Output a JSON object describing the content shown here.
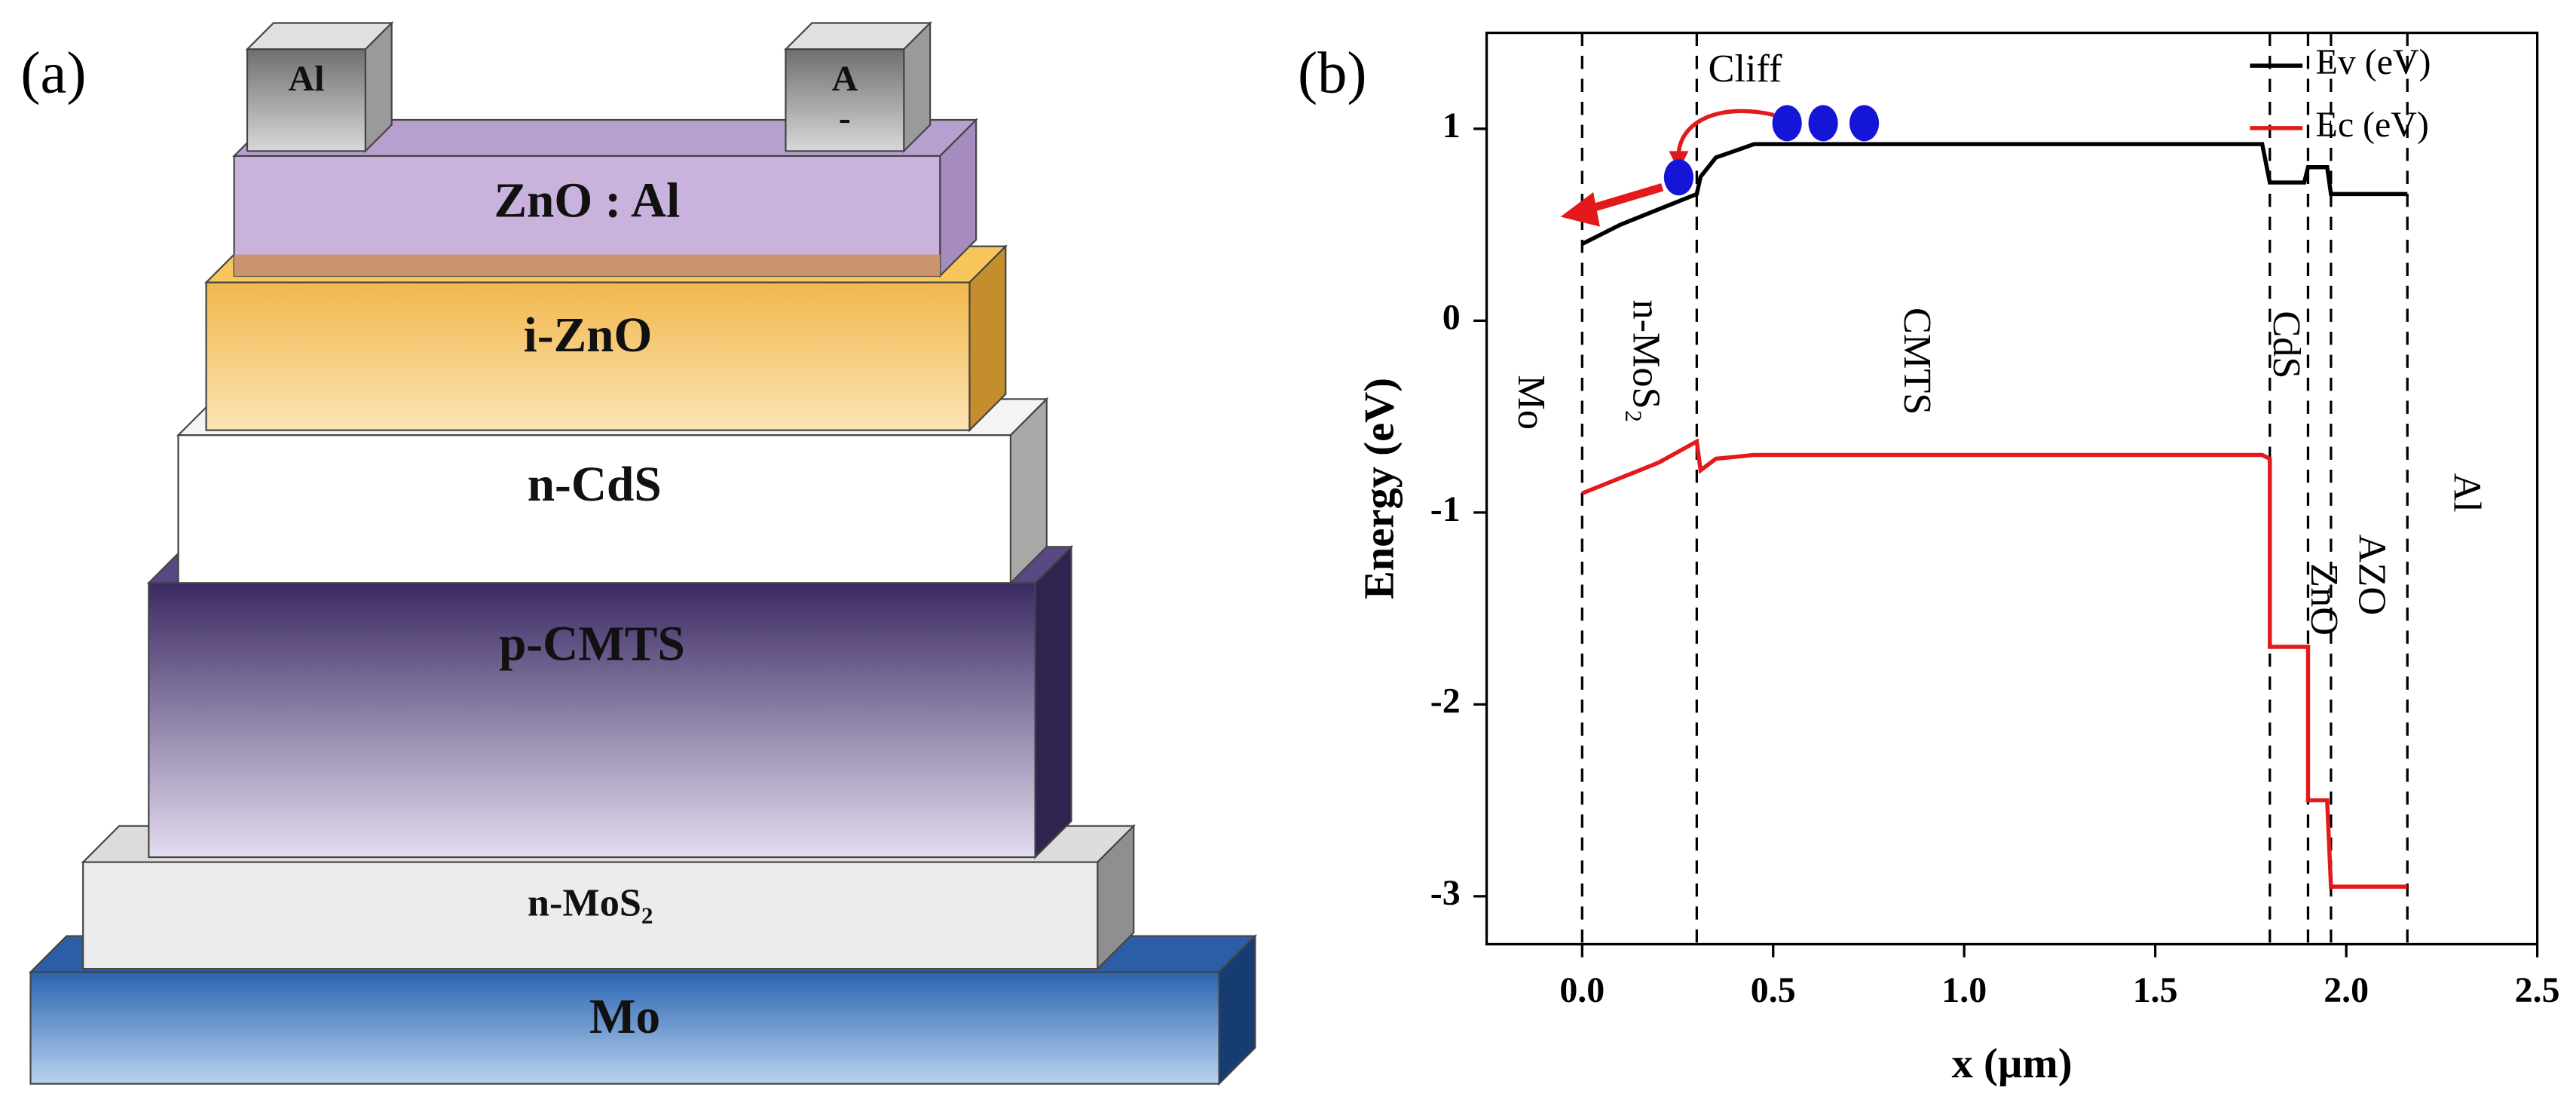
{
  "diagram": {
    "label": "(a)",
    "contacts": [
      [
        "Al"
      ],
      [
        "A",
        "-"
      ]
    ],
    "layers": [
      "ZnO : Al",
      "i-ZnO",
      "n-CdS",
      "p-CMTS",
      "n-MoS₂",
      "Mo"
    ]
  },
  "chart_data": {
    "type": "line",
    "panel_label": "(b)",
    "xlabel": "x (µm)",
    "ylabel": "Energy (eV)",
    "xlim": [
      -0.25,
      2.5
    ],
    "ylim": [
      -3.25,
      1.5
    ],
    "xticks": [
      {
        "value": 0,
        "label": "0.0"
      },
      {
        "value": 0.5,
        "label": "0.5"
      },
      {
        "value": 1,
        "label": "1.0"
      },
      {
        "value": 1.5,
        "label": "1.5"
      },
      {
        "value": 2,
        "label": "2.0"
      },
      {
        "value": 2.5,
        "label": "2.5"
      }
    ],
    "yticks": [
      1,
      0,
      -1,
      -2,
      -3
    ],
    "legend": "upper right",
    "boundaries": [
      0,
      0.3,
      1.8,
      1.9,
      1.96,
      2.16
    ],
    "regions": [
      "Mo",
      "n-MoS₂",
      "CMTS",
      "CdS",
      "ZnO",
      "AZO",
      "Al"
    ],
    "annotation": "Cliff",
    "series": [
      {
        "name": "Ev (eV)",
        "color": "#000000",
        "x": [
          0,
          0.1,
          0.2,
          0.3,
          0.31,
          0.35,
          0.45,
          1.78,
          1.8,
          1.89,
          1.9,
          1.95,
          1.96,
          2.16
        ],
        "values": [
          0.4,
          0.5,
          0.58,
          0.66,
          0.75,
          0.85,
          0.92,
          0.92,
          0.72,
          0.72,
          0.8,
          0.8,
          0.66,
          0.66
        ]
      },
      {
        "name": "Ec (eV)",
        "color": "#e31a1c",
        "x": [
          0,
          0.1,
          0.2,
          0.3,
          0.31,
          0.35,
          0.45,
          1.78,
          1.8,
          1.8,
          1.9,
          1.9,
          1.95,
          1.96,
          2.16
        ],
        "values": [
          -0.9,
          -0.82,
          -0.74,
          -0.63,
          -0.78,
          -0.72,
          -0.7,
          -0.7,
          -0.72,
          -1.7,
          -1.7,
          -2.5,
          -2.5,
          -2.95,
          -2.95
        ]
      }
    ]
  }
}
